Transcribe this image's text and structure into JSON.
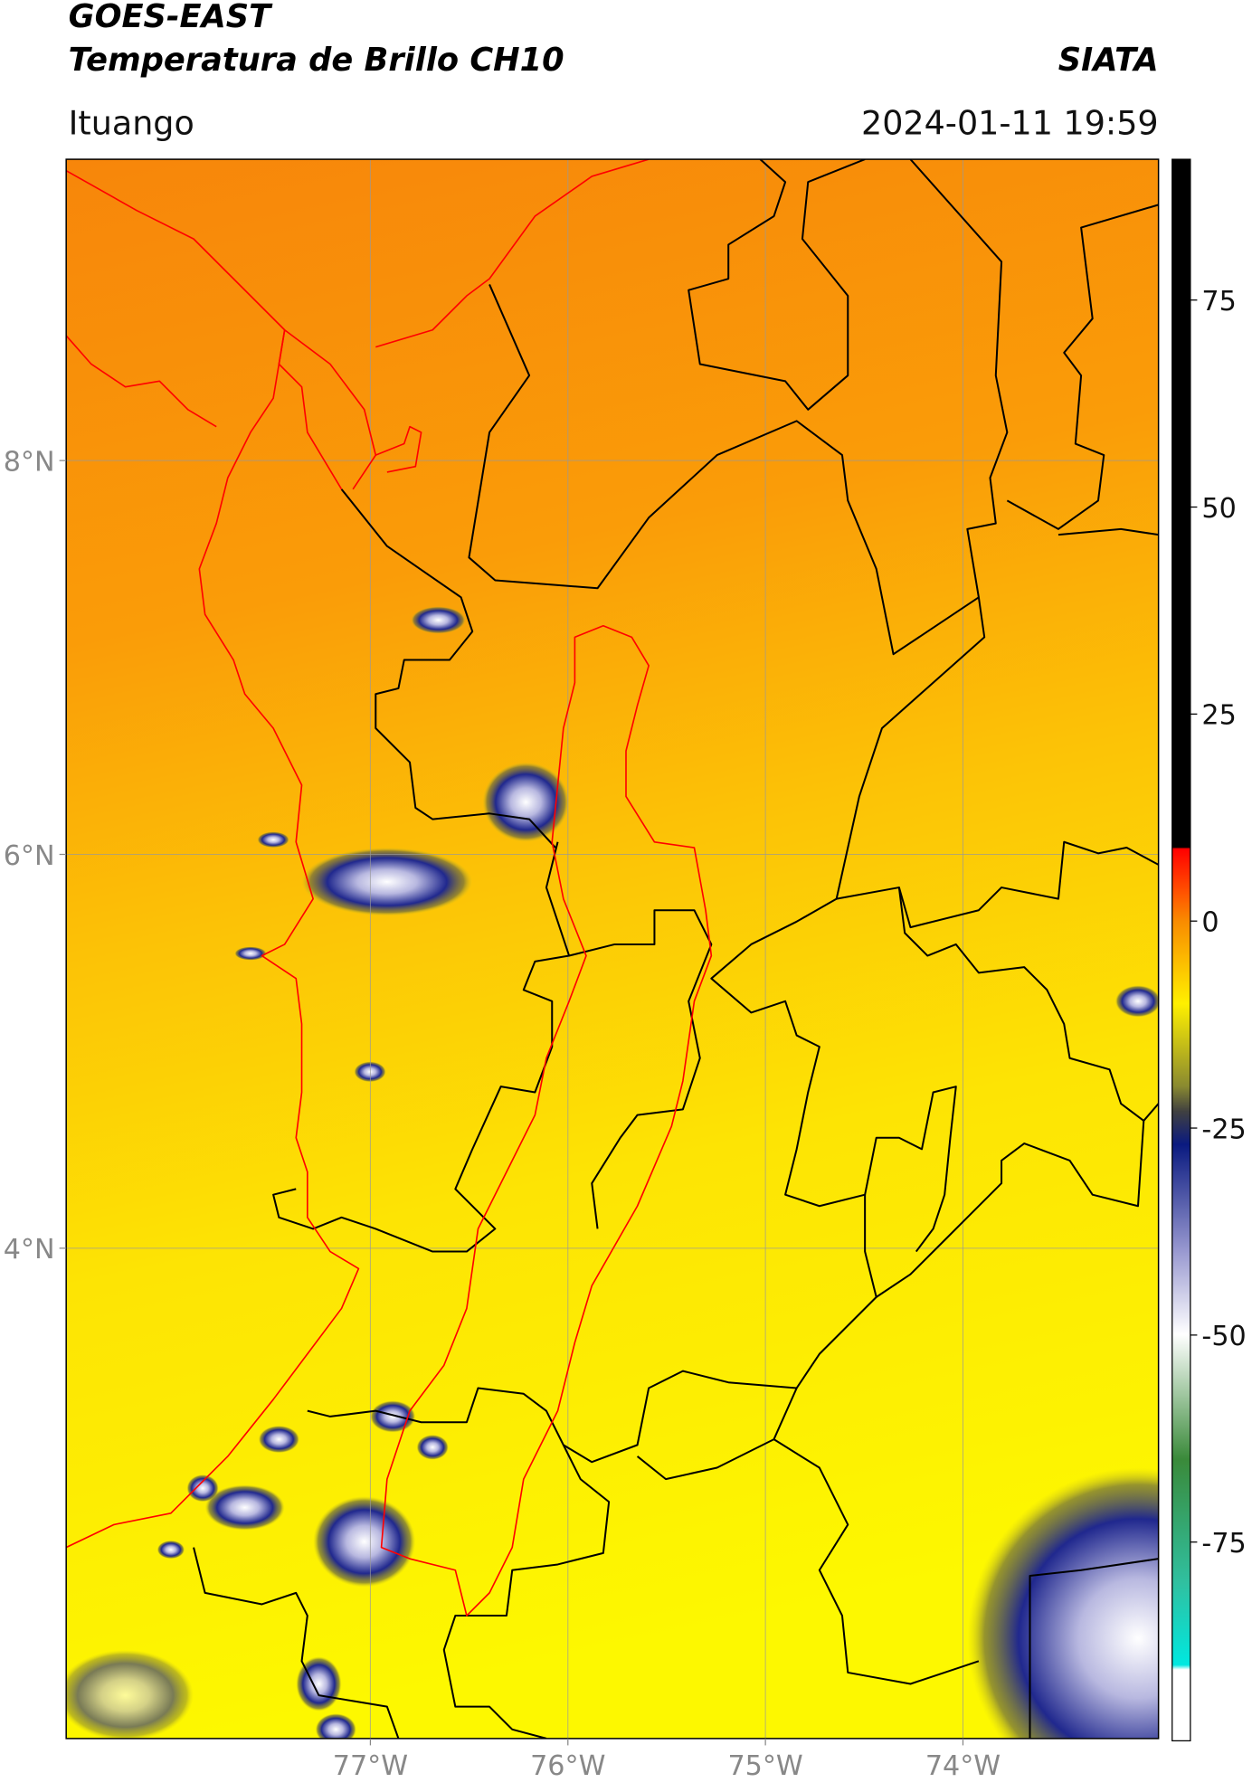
{
  "header": {
    "title": "GOES-EAST",
    "subtitle": "Temperatura de Brillo CH10",
    "organization": "SIATA",
    "location": "Ituango",
    "datetime": "2024-01-11 19:59"
  },
  "map": {
    "xlim": [
      -78.54,
      -73.01
    ],
    "ylim": [
      1.51,
      9.53
    ],
    "xticks": [
      {
        "value": -77,
        "label": "77°W"
      },
      {
        "value": -76,
        "label": "76°W"
      },
      {
        "value": -75,
        "label": "75°W"
      },
      {
        "value": -74,
        "label": "74°W"
      }
    ],
    "yticks": [
      {
        "value": 4,
        "label": "4°N"
      },
      {
        "value": 6,
        "label": "6°N"
      },
      {
        "value": 8,
        "label": "8°N"
      }
    ],
    "grid": true
  },
  "colorbar": {
    "lim": [
      -99,
      92
    ],
    "ticks": [
      -75,
      -50,
      -25,
      0,
      25,
      50,
      75
    ]
  }
}
